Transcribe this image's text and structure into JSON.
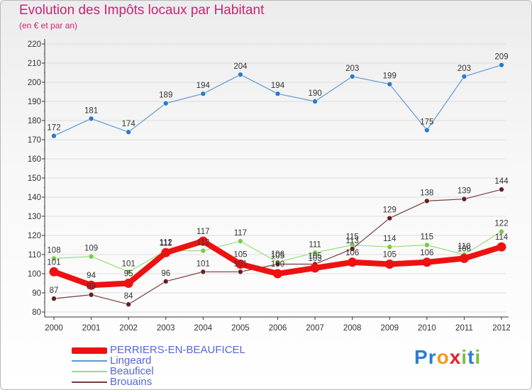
{
  "title": "Evolution des Impôts locaux par Habitant",
  "subtitle": "(en € et par an)",
  "brand": {
    "text": "Proxiti",
    "letters": [
      "P",
      "r",
      "o",
      "x",
      "i",
      "t",
      "i"
    ]
  },
  "colors": {
    "title": "#cc2277",
    "legend_text": "#5566dd",
    "axis": "#333333",
    "grid": "#dddddd",
    "brand_letters": [
      "#2a7fd0",
      "#2a7fd0",
      "#f39a1a",
      "#e0262b",
      "#7bbf3f",
      "#2a7fd0",
      "#7bbf3f"
    ]
  },
  "chart_data": {
    "type": "line",
    "title": "Evolution des Impôts locaux par Habitant",
    "ylabel": "(en € et par an)",
    "x": [
      "2000",
      "2001",
      "2002",
      "2003",
      "2004",
      "2005",
      "2006",
      "2007",
      "2008",
      "2009",
      "2010",
      "2011",
      "2012"
    ],
    "ylim": [
      80,
      220
    ],
    "yticks": [
      80,
      90,
      100,
      110,
      120,
      130,
      140,
      150,
      160,
      170,
      180,
      190,
      200,
      210,
      220
    ],
    "grid": true,
    "series": [
      {
        "name": "Lingeard",
        "color": "#5b9bd5",
        "marker": "#2a7bc8",
        "width": 1.2,
        "radius": 3.5,
        "values": [
          172,
          181,
          174,
          189,
          194,
          204,
          194,
          190,
          203,
          199,
          175,
          203,
          209
        ],
        "label_pos": "above"
      },
      {
        "name": "Beauficel",
        "color": "#99dd77",
        "marker": "#77cc44",
        "width": 1.2,
        "radius": 3.5,
        "values": [
          108,
          109,
          101,
          112,
          112,
          117,
          106,
          111,
          115,
          114,
          115,
          110,
          122
        ],
        "label_pos": "above"
      },
      {
        "name": "Brouains",
        "color": "#7a3a3a",
        "marker": "#661f1f",
        "width": 1.2,
        "radius": 3.5,
        "values": [
          87,
          89,
          84,
          96,
          101,
          101,
          105,
          105,
          113,
          129,
          138,
          139,
          144
        ],
        "label_pos": "above"
      },
      {
        "name": "PERRIERS-EN-BEAUFICEL",
        "color": "#ee1111",
        "marker": "#ee1111",
        "width": 8,
        "radius": 6.5,
        "values": [
          101,
          94,
          95,
          111,
          117,
          105,
          100,
          103,
          106,
          105,
          106,
          108,
          114
        ],
        "label_pos": "above"
      }
    ],
    "legend": [
      "PERRIERS-EN-BEAUFICEL",
      "Lingeard",
      "Beauficel",
      "Brouains"
    ],
    "legend_position": "bottom-left"
  }
}
